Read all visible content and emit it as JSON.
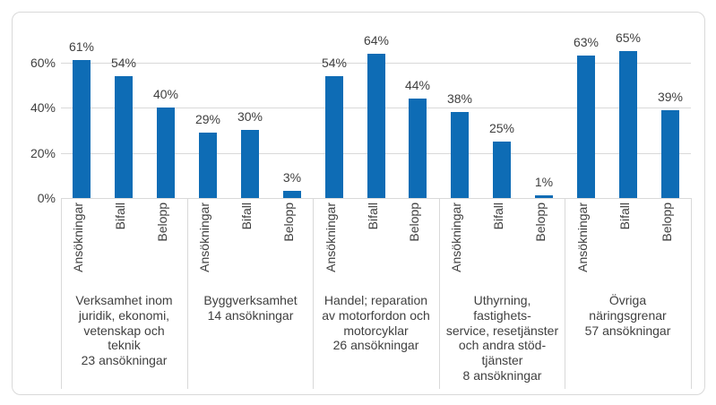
{
  "colors": {
    "bar": "#0E6CB5",
    "grid": "#D9D9D9",
    "frame_border": "#D9D9D9",
    "text": "#404040",
    "background": "#FFFFFF"
  },
  "chart_data": {
    "type": "bar",
    "title": "",
    "xlabel": "",
    "ylabel": "",
    "legend": "none",
    "grid": "horizontal",
    "ylim": [
      0,
      70
    ],
    "y_ticks": [
      0,
      20,
      40,
      60
    ],
    "y_tick_labels": [
      "0%",
      "20%",
      "40%",
      "60%"
    ],
    "categories": [
      "Ansökningar",
      "Bifall",
      "Belopp"
    ],
    "groups": [
      {
        "name": "Verksamhet inom juridik, ekonomi, vetenskap och teknik",
        "count": "23 ansökningar",
        "label": "Verksamhet inom\njuridik, ekonomi,\nvetenskap och\nteknik\n23 ansökningar",
        "values": [
          61,
          54,
          40
        ],
        "value_labels": [
          "61%",
          "54%",
          "40%"
        ]
      },
      {
        "name": "Byggverksamhet",
        "count": "14 ansökningar",
        "label": "Byggverksamhet\n14 ansökningar",
        "values": [
          29,
          30,
          3
        ],
        "value_labels": [
          "29%",
          "30%",
          "3%"
        ]
      },
      {
        "name": "Handel; reparation av motorfordon och motorcyklar",
        "count": "26 ansökningar",
        "label": "Handel; reparation\nav motorfordon och\nmotorcyklar\n26 ansökningar",
        "values": [
          54,
          64,
          44
        ],
        "value_labels": [
          "54%",
          "64%",
          "44%"
        ]
      },
      {
        "name": "Uthyrning, fastighetsservice, resetjänster och andra stödtjänster",
        "count": "8 ansökningar",
        "label": "Uthyrning,\nfastighets-\nservice, resetjänster\noch andra stöd-\ntjänster\n8 ansökningar",
        "values": [
          38,
          25,
          1
        ],
        "value_labels": [
          "38%",
          "25%",
          "1%"
        ]
      },
      {
        "name": "Övriga näringsgrenar",
        "count": "57 ansökningar",
        "label": "Övriga\nnäringsgrenar\n57 ansökningar",
        "values": [
          63,
          65,
          39
        ],
        "value_labels": [
          "63%",
          "65%",
          "39%"
        ]
      }
    ]
  }
}
